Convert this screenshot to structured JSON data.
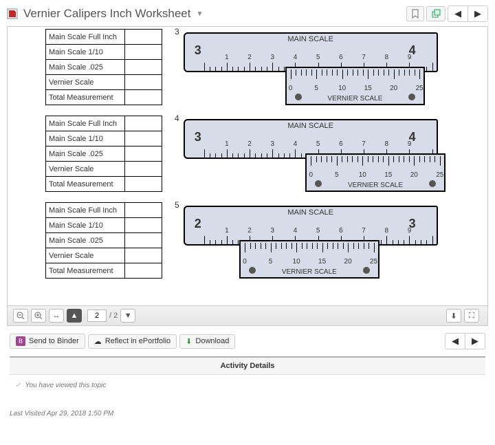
{
  "header": {
    "title": "Vernier Calipers Inch Worksheet",
    "pdf_icon_color": "#c62828"
  },
  "viewer": {
    "page_current": "2",
    "page_total": "/ 2"
  },
  "table_rows": [
    "Main Scale Full Inch",
    "Main Scale 1/10",
    "Main Scale .025",
    "Vernier Scale",
    "Total Measurement"
  ],
  "problems": [
    {
      "n": "3",
      "big_left": "3",
      "big_right": "4",
      "vern_left_pct": 40,
      "vern_width_pct": 55
    },
    {
      "n": "4",
      "big_left": "3",
      "big_right": "4",
      "vern_left_pct": 48,
      "vern_width_pct": 55
    },
    {
      "n": "5",
      "big_left": "2",
      "big_right": "3",
      "vern_left_pct": 22,
      "vern_width_pct": 55
    }
  ],
  "main_scale_label": "MAIN SCALE",
  "vernier_label": "VERNIER SCALE",
  "main_minor_labels": [
    "1",
    "2",
    "3",
    "4",
    "5",
    "6",
    "7",
    "8",
    "9"
  ],
  "vern_labels": [
    "0",
    "5",
    "10",
    "15",
    "20",
    "25"
  ],
  "actions": {
    "binder": "Send to Binder",
    "reflect": "Reflect in ePortfolio",
    "download": "Download"
  },
  "details_title": "Activity Details",
  "viewed_text": "You have viewed this topic",
  "last_visited_label": "Last Visited ",
  "last_visited_value": "Apr 29, 2018 1:50 PM"
}
